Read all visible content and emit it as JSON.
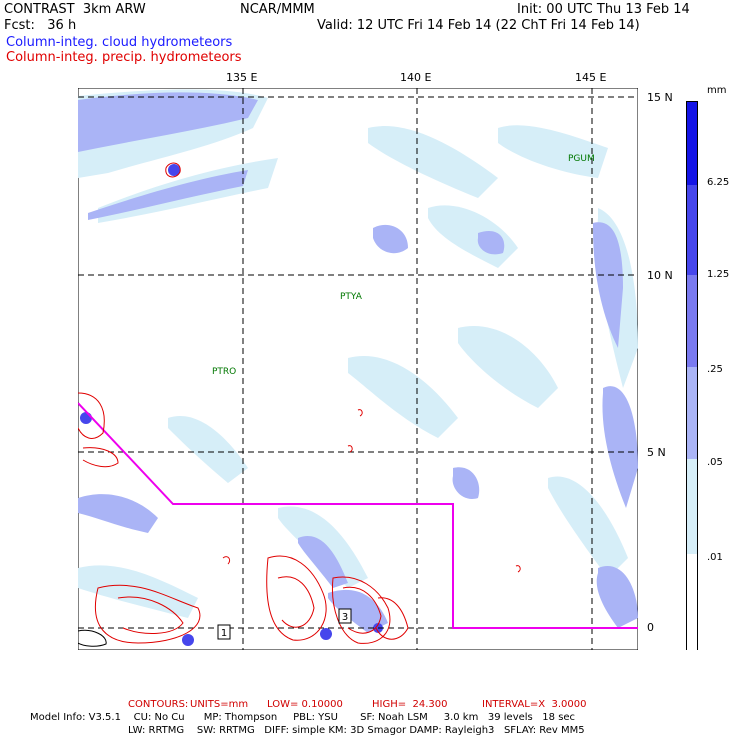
{
  "header": {
    "model": "CONTRAST  3km ARW",
    "center": "NCAR/MMM",
    "init": "Init: 00 UTC Thu 13 Feb 14",
    "fcst": "Fcst:   36 h",
    "valid": "Valid: 12 UTC Fri 14 Feb 14 (22 ChT Fri 14 Feb 14)"
  },
  "legend": {
    "cloud": "Column-integ. cloud hydrometeors",
    "precip": "Column-integ. precip. hydrometeors"
  },
  "axes": {
    "lon_labels": [
      "135 E",
      "140 E",
      "145 E"
    ],
    "lat_labels": [
      "15 N",
      "10 N",
      "5 N",
      "0"
    ]
  },
  "stations": [
    "PGUM",
    "PTYA",
    "PTRO"
  ],
  "boxes": [
    "1",
    "3"
  ],
  "colorbar": {
    "unit": "mm",
    "labels": [
      "6.25",
      "1.25",
      ".25",
      ".05",
      ".01"
    ],
    "colors": [
      "#1414e6",
      "#4646ec",
      "#7a7af0",
      "#aab4f6",
      "#d6eef8",
      "#ffffff"
    ]
  },
  "contours_line": {
    "label": "CONTOURS:",
    "units": "UNITS=mm",
    "low": "LOW= 0.10000",
    "high": "HIGH=  24.300",
    "interval": "INTERVAL=X  3.0000"
  },
  "model_info": {
    "line1": "Model Info: V3.5.1    CU: No Cu      MP: Thompson     PBL: YSU       SF: Noah LSM     3.0 km   39 levels   18 sec",
    "line2": "LW: RRTMG    SW: RRTMG   DIFF: simple KM: 3D Smagor DAMP: Rayleigh3   SFLAY: Rev MM5"
  },
  "colors": {
    "cloud_blue": "#1a1aff",
    "precip_red": "#e00000",
    "track_magenta": "#ee00ee",
    "station_green": "#007700"
  }
}
